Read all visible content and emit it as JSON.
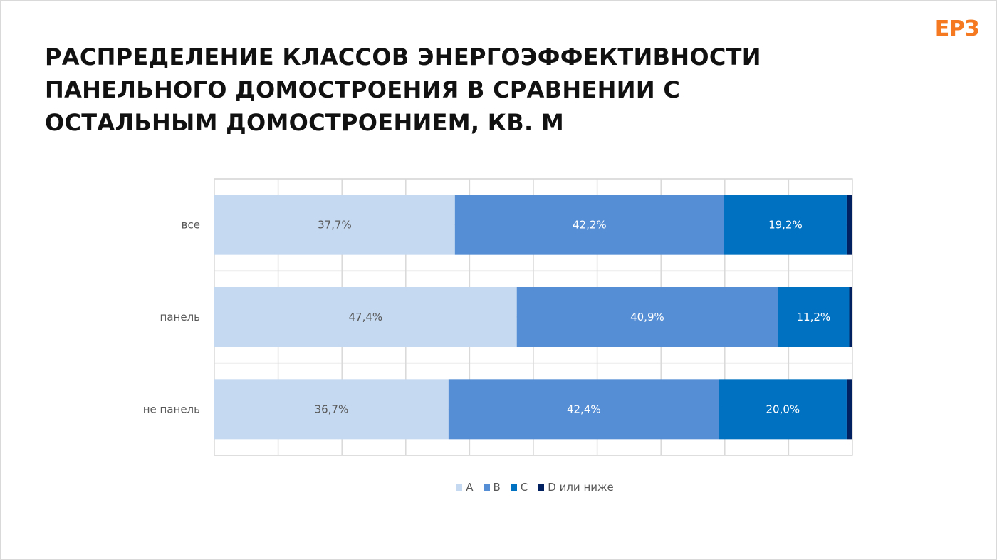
{
  "slide": {
    "title_lines": [
      "РАСПРЕДЕЛЕНИЕ КЛАССОВ ЭНЕРГОЭФФЕКТИВНОСТИ",
      "ПАНЕЛЬНОГО ДОМОСТРОЕНИЯ В СРАВНЕНИИ С",
      "ОСТАЛЬНЫМ ДОМОСТРОЕНИЕМ, КВ. М"
    ],
    "logo": "ЕРЗ"
  },
  "chart_data": {
    "type": "bar",
    "orientation": "horizontal",
    "stacked": true,
    "normalized_percent": true,
    "title": "РАСПРЕДЕЛЕНИЕ КЛАССОВ ЭНЕРГОЭФФЕКТИВНОСТИ ПАНЕЛЬНОГО ДОМОСТРОЕНИЯ В СРАВНЕНИИ С ОСТАЛЬНЫМ ДОМОСТРОЕНИЕМ, КВ. М",
    "categories": [
      "все",
      "панель",
      "не панель"
    ],
    "series": [
      {
        "name": "A",
        "color": "#c5d9f1",
        "label_color": "#595959",
        "values": [
          37.7,
          47.4,
          36.7
        ],
        "labels": [
          "37,7%",
          "47,4%",
          "36,7%"
        ]
      },
      {
        "name": "B",
        "color": "#558ed5",
        "label_color": "#ffffff",
        "values": [
          42.2,
          40.9,
          42.4
        ],
        "labels": [
          "42,2%",
          "40,9%",
          "42,4%"
        ]
      },
      {
        "name": "C",
        "color": "#0070c0",
        "label_color": "#ffffff",
        "values": [
          19.2,
          11.2,
          20.0
        ],
        "labels": [
          "19,2%",
          "11,2%",
          "20,0%"
        ]
      },
      {
        "name": "D или ниже",
        "color": "#002060",
        "label_color": "#ffffff",
        "values": [
          0.9,
          0.5,
          0.9
        ],
        "labels": [
          "",
          "",
          ""
        ]
      }
    ],
    "xlim": [
      0,
      100
    ],
    "grid": true,
    "legend_position": "bottom",
    "legend": [
      "A",
      "B",
      "C",
      "D или ниже"
    ]
  }
}
